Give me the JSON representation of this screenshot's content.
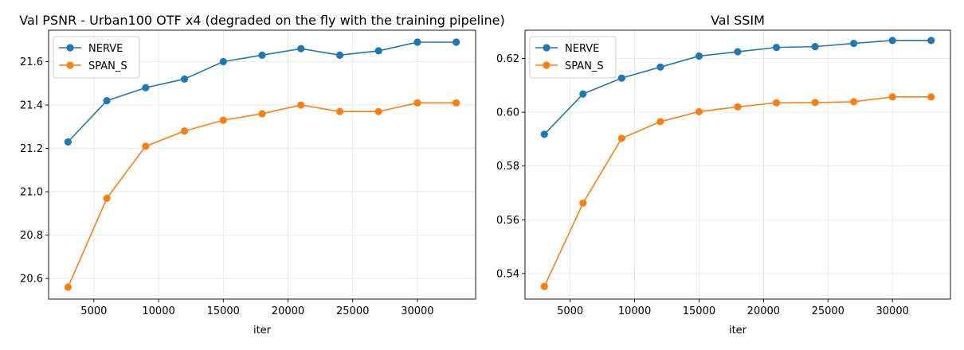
{
  "colors": {
    "series_1": "#1f77b4",
    "series_2": "#ff7f0e",
    "grid": "#e5e5e5"
  },
  "chart_data": [
    {
      "type": "line",
      "title": "Val PSNR - Urban100 OTF x4 (degraded on the fly with the training pipeline)",
      "xlabel": "iter",
      "ylabel": "",
      "x": [
        3000,
        6000,
        9000,
        12000,
        15000,
        18000,
        21000,
        24000,
        27000,
        30000,
        33000
      ],
      "series": [
        {
          "name": "NERVE",
          "values": [
            21.23,
            21.42,
            21.48,
            21.52,
            21.6,
            21.63,
            21.66,
            21.63,
            21.65,
            21.69,
            21.69
          ]
        },
        {
          "name": "SPAN_S",
          "values": [
            20.56,
            20.97,
            21.21,
            21.28,
            21.33,
            21.36,
            21.4,
            21.37,
            21.37,
            21.41,
            21.41
          ]
        }
      ],
      "xlim": [
        1500,
        34500
      ],
      "ylim": [
        20.505,
        21.745
      ],
      "xticks": [
        5000,
        10000,
        15000,
        20000,
        25000,
        30000
      ],
      "xtick_labels": [
        "5000",
        "10000",
        "15000",
        "20000",
        "25000",
        "30000"
      ],
      "yticks": [
        20.6,
        20.8,
        21.0,
        21.2,
        21.4,
        21.6
      ],
      "ytick_labels": [
        "20.6",
        "20.8",
        "21.0",
        "21.2",
        "21.4",
        "21.6"
      ],
      "grid": true,
      "legend": "upper-left"
    },
    {
      "type": "line",
      "title": "Val SSIM",
      "xlabel": "iter",
      "ylabel": "",
      "x": [
        3000,
        6000,
        9000,
        12000,
        15000,
        18000,
        21000,
        24000,
        27000,
        30000,
        33000
      ],
      "series": [
        {
          "name": "NERVE",
          "values": [
            0.5918,
            0.6068,
            0.6127,
            0.6168,
            0.6209,
            0.6225,
            0.6241,
            0.6244,
            0.6256,
            0.6267,
            0.6267
          ]
        },
        {
          "name": "SPAN_S",
          "values": [
            0.5352,
            0.5662,
            0.5903,
            0.5965,
            0.6002,
            0.602,
            0.6035,
            0.6036,
            0.6039,
            0.6057,
            0.6057
          ]
        }
      ],
      "xlim": [
        1500,
        34500
      ],
      "ylim": [
        0.5305,
        0.6305
      ],
      "xticks": [
        5000,
        10000,
        15000,
        20000,
        25000,
        30000
      ],
      "xtick_labels": [
        "5000",
        "10000",
        "15000",
        "20000",
        "25000",
        "30000"
      ],
      "yticks": [
        0.54,
        0.56,
        0.58,
        0.6,
        0.62
      ],
      "ytick_labels": [
        "0.54",
        "0.56",
        "0.58",
        "0.60",
        "0.62"
      ],
      "grid": true,
      "legend": "upper-left"
    }
  ]
}
